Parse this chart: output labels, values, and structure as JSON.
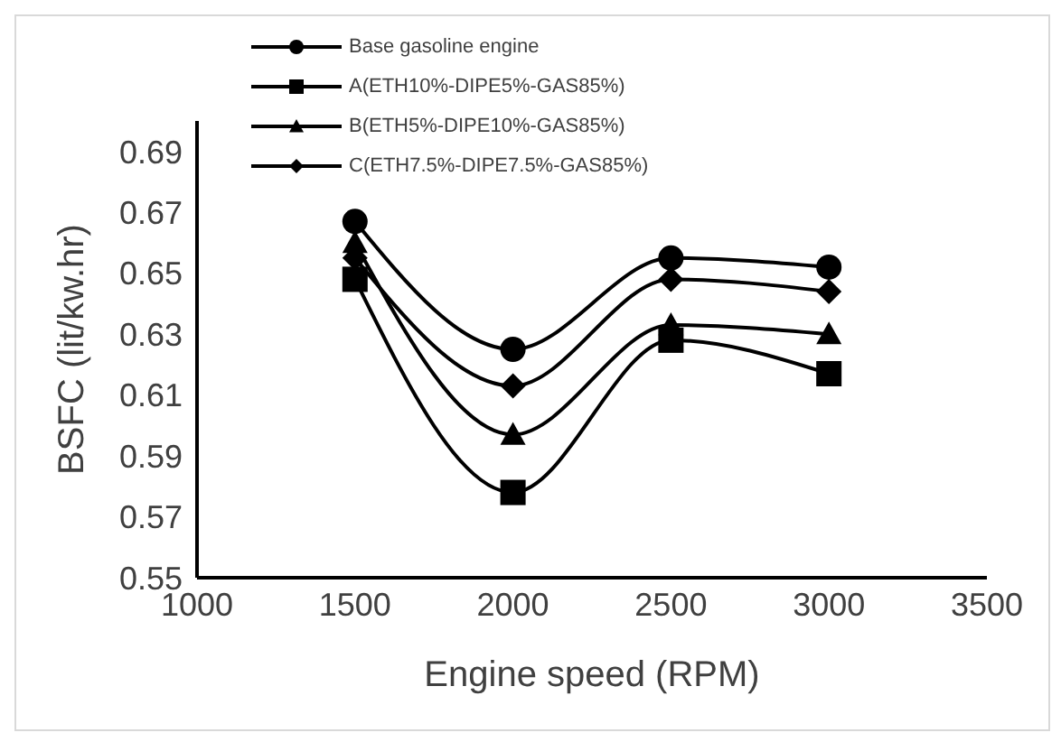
{
  "chart_data": {
    "type": "line",
    "xlabel": "Engine speed (RPM)",
    "ylabel": "BSFC (lit/kw.hr)",
    "x": [
      1500,
      2000,
      2500,
      3000
    ],
    "xlim": [
      1000,
      3500
    ],
    "xticks": [
      1000,
      1500,
      2000,
      2500,
      3000,
      3500
    ],
    "ylim": [
      0.55,
      0.7
    ],
    "yticks": [
      0.55,
      0.57,
      0.59,
      0.61,
      0.63,
      0.65,
      0.67,
      0.69
    ],
    "grid": false,
    "legend": "top left",
    "line_style": "solid",
    "series": [
      {
        "name": "Base gasoline engine",
        "color": "#000000",
        "marker": "circle",
        "values": [
          0.667,
          0.625,
          0.655,
          0.652
        ]
      },
      {
        "name": "A(ETH10%-DIPE5%-GAS85%)",
        "color": "#000000",
        "marker": "square",
        "values": [
          0.648,
          0.578,
          0.628,
          0.617
        ]
      },
      {
        "name": "B(ETH5%-DIPE10%-GAS85%)",
        "color": "#000000",
        "marker": "triangle",
        "values": [
          0.66,
          0.597,
          0.633,
          0.63
        ]
      },
      {
        "name": "C(ETH7.5%-DIPE7.5%-GAS85%)",
        "color": "#000000",
        "marker": "diamond",
        "values": [
          0.655,
          0.613,
          0.648,
          0.644
        ]
      }
    ]
  }
}
